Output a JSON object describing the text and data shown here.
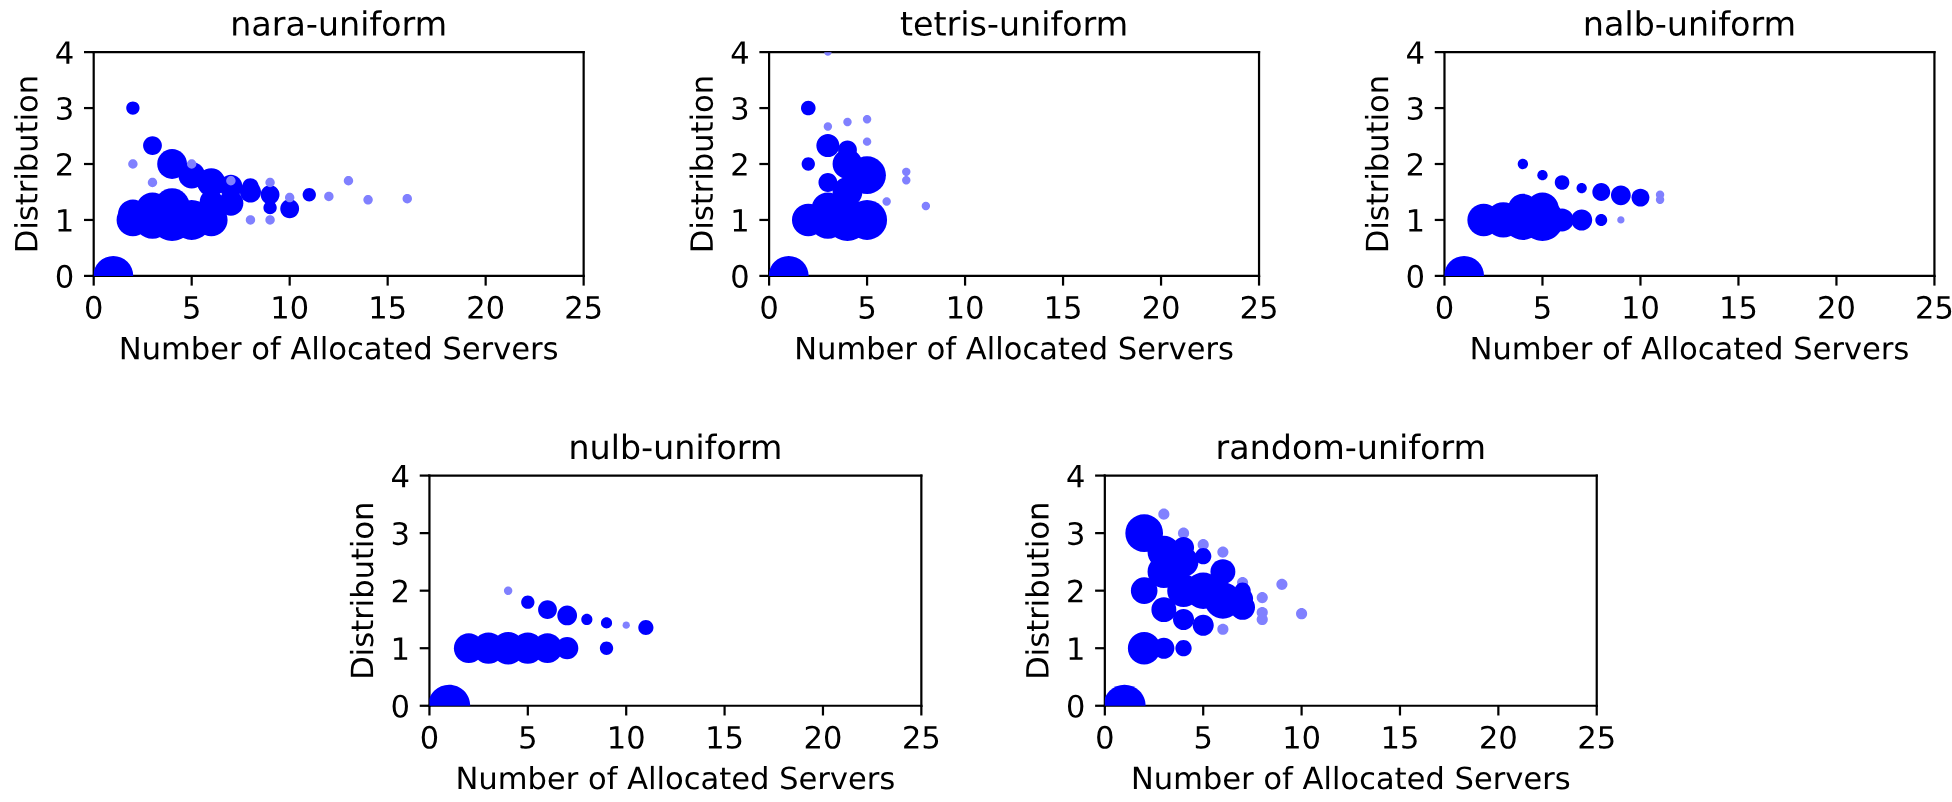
{
  "chart_data": [
    {
      "type": "bubble",
      "title": "nara-uniform",
      "xlabel": "Number of Allocated Servers",
      "ylabel": "Distribution",
      "xlim": [
        0,
        25
      ],
      "ylim": [
        0,
        4
      ],
      "xticks": [
        0,
        5,
        10,
        15,
        20,
        25
      ],
      "yticks": [
        0,
        1,
        2,
        3,
        4
      ],
      "series": [
        {
          "x": [
            1,
            2,
            2,
            3,
            3,
            4,
            5,
            5,
            6,
            7,
            7,
            7,
            8,
            8,
            8,
            9,
            9,
            9,
            9,
            10,
            10,
            11,
            12,
            13,
            14,
            16,
            2,
            2,
            3,
            3,
            4,
            4,
            5,
            6,
            6
          ],
          "values": [
            0,
            3.0,
            2.0,
            2.33,
            1.67,
            2.0,
            1.8,
            2.0,
            1.67,
            1.6,
            1.3,
            1.7,
            1.5,
            1.6,
            1.0,
            1.45,
            1.67,
            1.22,
            1.0,
            1.2,
            1.4,
            1.45,
            1.42,
            1.7,
            1.36,
            1.38,
            1.0,
            1.1,
            1.0,
            1.2,
            1.0,
            1.25,
            1.0,
            1.0,
            1.33
          ],
          "sizes": [
            0.9,
            0.1,
            0.05,
            0.2,
            0.05,
            0.5,
            0.4,
            0.05,
            0.45,
            0.3,
            0.35,
            0.05,
            0.25,
            0.15,
            0.05,
            0.2,
            0.05,
            0.1,
            0.05,
            0.2,
            0.05,
            0.1,
            0.05,
            0.05,
            0.05,
            0.05,
            0.6,
            0.5,
            0.8,
            0.6,
            1.0,
            0.7,
            0.9,
            0.6,
            0.3
          ],
          "colors": [
            "#0000ff",
            "#0000ff",
            "#8080ff",
            "#0000ff",
            "#8080ff",
            "#0000ff",
            "#0000ff",
            "#8080ff",
            "#0000ff",
            "#0000ff",
            "#0000ff",
            "#8080ff",
            "#0000ff",
            "#0000ff",
            "#8080ff",
            "#0000ff",
            "#8080ff",
            "#0000ff",
            "#8080ff",
            "#0000ff",
            "#8080ff",
            "#0000ff",
            "#8080ff",
            "#8080ff",
            "#8080ff",
            "#8080ff",
            "#0000ff",
            "#0000ff",
            "#0000ff",
            "#0000ff",
            "#0000ff",
            "#0000ff",
            "#0000ff",
            "#0000ff",
            "#0000ff"
          ]
        }
      ]
    },
    {
      "type": "bubble",
      "title": "tetris-uniform",
      "xlabel": "Number of Allocated Servers",
      "ylabel": "Distribution",
      "xlim": [
        0,
        25
      ],
      "ylim": [
        0,
        4
      ],
      "xticks": [
        0,
        5,
        10,
        15,
        20,
        25
      ],
      "yticks": [
        0,
        1,
        2,
        3,
        4
      ],
      "series": [
        {
          "x": [
            1,
            2,
            2,
            3,
            3,
            3,
            3,
            4,
            4,
            4,
            5,
            5,
            5,
            6,
            7,
            7,
            8,
            2,
            3,
            3,
            4,
            4,
            5
          ],
          "values": [
            0,
            3.0,
            2.0,
            2.33,
            1.67,
            2.67,
            4.0,
            2.75,
            2.25,
            2.0,
            1.8,
            2.8,
            2.4,
            1.33,
            1.86,
            1.71,
            1.25,
            1.0,
            1.0,
            1.2,
            1.0,
            1.5,
            1.0
          ],
          "sizes": [
            0.9,
            0.12,
            0.1,
            0.3,
            0.2,
            0.04,
            0.03,
            0.04,
            0.2,
            0.5,
            0.8,
            0.04,
            0.04,
            0.04,
            0.04,
            0.04,
            0.04,
            0.6,
            0.8,
            0.6,
            1.0,
            0.5,
            0.9
          ],
          "colors": [
            "#0000ff",
            "#0000ff",
            "#0000ff",
            "#0000ff",
            "#0000ff",
            "#8080ff",
            "#8080ff",
            "#8080ff",
            "#0000ff",
            "#0000ff",
            "#0000ff",
            "#8080ff",
            "#8080ff",
            "#8080ff",
            "#8080ff",
            "#8080ff",
            "#8080ff",
            "#0000ff",
            "#0000ff",
            "#0000ff",
            "#0000ff",
            "#0000ff",
            "#0000ff"
          ]
        }
      ]
    },
    {
      "type": "bubble",
      "title": "nalb-uniform",
      "xlabel": "Number of Allocated Servers",
      "ylabel": "Distribution",
      "xlim": [
        0,
        25
      ],
      "ylim": [
        0,
        4
      ],
      "xticks": [
        0,
        5,
        10,
        15,
        20,
        25
      ],
      "yticks": [
        0,
        1,
        2,
        3,
        4
      ],
      "series": [
        {
          "x": [
            1,
            2,
            3,
            4,
            4,
            5,
            5,
            6,
            7,
            8,
            9,
            4,
            5,
            6,
            7,
            8,
            9,
            10,
            11,
            11
          ],
          "values": [
            0,
            1.0,
            1.0,
            1.0,
            1.2,
            1.0,
            1.2,
            1.0,
            1.0,
            1.0,
            1.0,
            2.0,
            1.8,
            1.67,
            1.57,
            1.5,
            1.44,
            1.4,
            1.45,
            1.36
          ],
          "sizes": [
            0.9,
            0.6,
            0.7,
            0.9,
            0.5,
            1.0,
            0.6,
            0.3,
            0.25,
            0.08,
            0.03,
            0.06,
            0.06,
            0.12,
            0.06,
            0.18,
            0.22,
            0.18,
            0.04,
            0.04
          ],
          "colors": [
            "#0000ff",
            "#0000ff",
            "#0000ff",
            "#0000ff",
            "#0000ff",
            "#0000ff",
            "#0000ff",
            "#0000ff",
            "#0000ff",
            "#0000ff",
            "#8080ff",
            "#0000ff",
            "#0000ff",
            "#0000ff",
            "#0000ff",
            "#0000ff",
            "#0000ff",
            "#0000ff",
            "#8080ff",
            "#8080ff"
          ]
        }
      ]
    },
    {
      "type": "bubble",
      "title": "nulb-uniform",
      "xlabel": "Number of Allocated Servers",
      "ylabel": "Distribution",
      "xlim": [
        0,
        25
      ],
      "ylim": [
        0,
        4
      ],
      "xticks": [
        0,
        5,
        10,
        15,
        20,
        25
      ],
      "yticks": [
        0,
        1,
        2,
        3,
        4
      ],
      "series": [
        {
          "x": [
            1,
            2,
            3,
            4,
            5,
            6,
            7,
            9,
            4,
            5,
            6,
            7,
            8,
            9,
            10,
            11
          ],
          "values": [
            0,
            1.0,
            1.0,
            1.0,
            1.0,
            1.0,
            1.0,
            1.0,
            2.0,
            1.8,
            1.67,
            1.57,
            1.5,
            1.44,
            1.4,
            1.36
          ],
          "sizes": [
            1.0,
            0.5,
            0.55,
            0.6,
            0.55,
            0.5,
            0.28,
            0.1,
            0.04,
            0.1,
            0.2,
            0.22,
            0.07,
            0.07,
            0.03,
            0.13
          ],
          "colors": [
            "#0000ff",
            "#0000ff",
            "#0000ff",
            "#0000ff",
            "#0000ff",
            "#0000ff",
            "#0000ff",
            "#0000ff",
            "#8080ff",
            "#0000ff",
            "#0000ff",
            "#0000ff",
            "#0000ff",
            "#0000ff",
            "#8080ff",
            "#0000ff"
          ]
        }
      ]
    },
    {
      "type": "bubble",
      "title": "random-uniform",
      "xlabel": "Number of Allocated Servers",
      "ylabel": "Distribution",
      "xlim": [
        0,
        25
      ],
      "ylim": [
        0,
        4
      ],
      "xticks": [
        0,
        5,
        10,
        15,
        20,
        25
      ],
      "yticks": [
        0,
        1,
        2,
        3,
        4
      ],
      "series": [
        {
          "x": [
            1,
            2,
            2,
            2,
            3,
            3,
            3,
            3,
            3,
            4,
            4,
            4,
            4,
            4,
            4,
            5,
            5,
            5,
            5,
            6,
            6,
            6,
            6,
            7,
            7,
            7,
            7,
            8,
            8,
            8,
            9,
            10
          ],
          "values": [
            0,
            3.0,
            2.0,
            1.0,
            3.33,
            2.67,
            2.33,
            1.67,
            1.0,
            3.0,
            2.75,
            2.5,
            2.0,
            1.5,
            1.0,
            2.8,
            2.6,
            2.0,
            1.4,
            2.67,
            2.33,
            1.83,
            1.33,
            2.14,
            2.0,
            1.86,
            1.71,
            1.88,
            1.62,
            1.5,
            2.11,
            1.6
          ],
          "sizes": [
            1.0,
            0.8,
            0.4,
            0.6,
            0.07,
            0.6,
            0.6,
            0.35,
            0.25,
            0.07,
            0.25,
            0.5,
            0.6,
            0.25,
            0.15,
            0.07,
            0.15,
            0.75,
            0.25,
            0.07,
            0.35,
            0.75,
            0.07,
            0.07,
            0.15,
            0.25,
            0.35,
            0.07,
            0.07,
            0.07,
            0.07,
            0.07
          ],
          "colors": [
            "#0000ff",
            "#0000ff",
            "#0000ff",
            "#0000ff",
            "#8080ff",
            "#0000ff",
            "#0000ff",
            "#0000ff",
            "#0000ff",
            "#8080ff",
            "#0000ff",
            "#0000ff",
            "#0000ff",
            "#0000ff",
            "#0000ff",
            "#8080ff",
            "#0000ff",
            "#0000ff",
            "#0000ff",
            "#8080ff",
            "#0000ff",
            "#0000ff",
            "#8080ff",
            "#8080ff",
            "#0000ff",
            "#0000ff",
            "#0000ff",
            "#8080ff",
            "#8080ff",
            "#8080ff",
            "#8080ff",
            "#8080ff"
          ]
        }
      ]
    }
  ]
}
